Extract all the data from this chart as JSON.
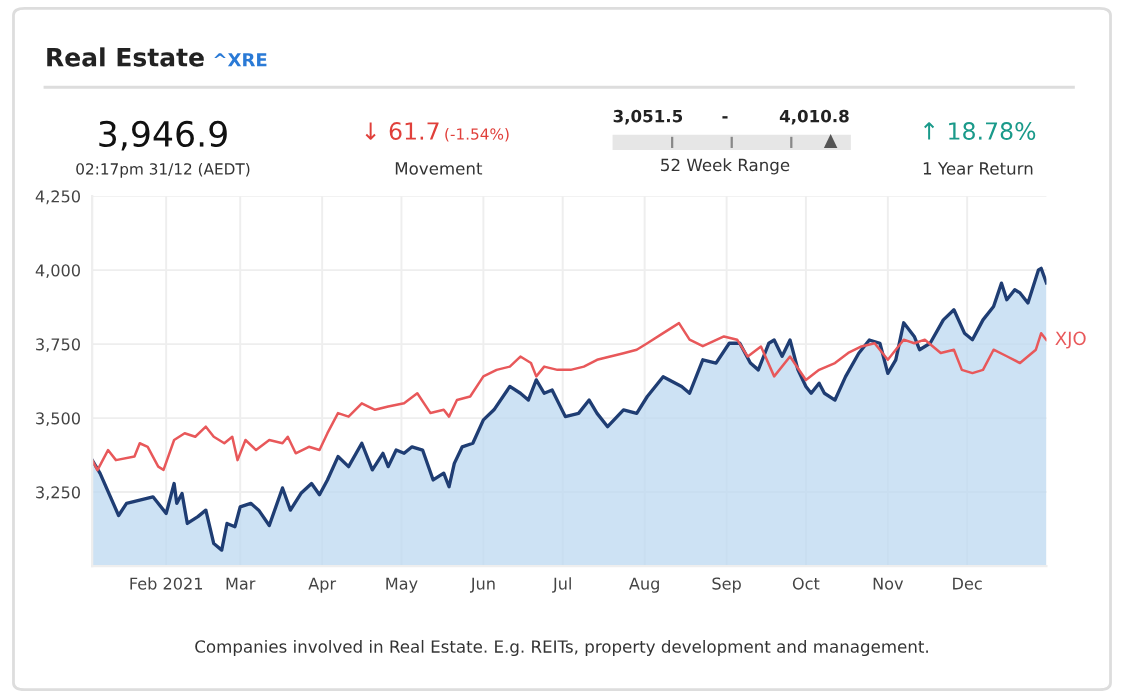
{
  "chart_data": {
    "type": "area",
    "title": "Real Estate",
    "annotations": [
      "^XRE",
      "3,946.9",
      "02:17pm 31/12 (AEDT)",
      "↓ 61.7",
      "(-1.54%)",
      "Movement",
      "3,051.5",
      "-",
      "4,010.8",
      "52 Week Range",
      "↑ 18.78%",
      "1 Year Return",
      "Companies involved in Real Estate. E.g. REITs, property development and management."
    ],
    "series": [
      {
        "color": "#1f3d73",
        "x": [
          "2021-01-04",
          "2021-01-07",
          "2021-01-14",
          "2021-01-17",
          "2021-01-22",
          "2021-01-27",
          "2021-02-01",
          "2021-02-04",
          "2021-02-05",
          "2021-02-07",
          "2021-02-09",
          "2021-02-13",
          "2021-02-16",
          "2021-02-19",
          "2021-02-22",
          "2021-02-24",
          "2021-02-27",
          "2021-03-01",
          "2021-03-05",
          "2021-03-08",
          "2021-03-12",
          "2021-03-17",
          "2021-03-20",
          "2021-03-24",
          "2021-03-28",
          "2021-03-31",
          "2021-04-03",
          "2021-04-07",
          "2021-04-11",
          "2021-04-16",
          "2021-04-20",
          "2021-04-24",
          "2021-04-26",
          "2021-04-29",
          "2021-05-02",
          "2021-05-05",
          "2021-05-09",
          "2021-05-13",
          "2021-05-17",
          "2021-05-19",
          "2021-05-21",
          "2021-05-24",
          "2021-05-28",
          "2021-06-01",
          "2021-06-05",
          "2021-06-11",
          "2021-06-15",
          "2021-06-18",
          "2021-06-21",
          "2021-06-24",
          "2021-06-27",
          "2021-07-02",
          "2021-07-07",
          "2021-07-11",
          "2021-07-14",
          "2021-07-18",
          "2021-07-24",
          "2021-07-29",
          "2021-08-02",
          "2021-08-08",
          "2021-08-15",
          "2021-08-18",
          "2021-08-23",
          "2021-08-28",
          "2021-09-02",
          "2021-09-06",
          "2021-09-10",
          "2021-09-13",
          "2021-09-17",
          "2021-09-19",
          "2021-09-22",
          "2021-09-25",
          "2021-09-28",
          "2021-10-01",
          "2021-10-03",
          "2021-10-06",
          "2021-10-08",
          "2021-10-12",
          "2021-10-16",
          "2021-10-21",
          "2021-10-25",
          "2021-10-29",
          "2021-11-01",
          "2021-11-04",
          "2021-11-07",
          "2021-11-11",
          "2021-11-13",
          "2021-11-17",
          "2021-11-22",
          "2021-11-26",
          "2021-11-30",
          "2021-12-03",
          "2021-12-07",
          "2021-12-11",
          "2021-12-14",
          "2021-12-16",
          "2021-12-19",
          "2021-12-21",
          "2021-12-24",
          "2021-12-28",
          "2021-12-29",
          "2021-12-31"
        ],
        "values": [
          3358,
          3313,
          3171,
          3212,
          3223,
          3234,
          3178,
          3279,
          3212,
          3245,
          3144,
          3167,
          3189,
          3076,
          3054,
          3144,
          3133,
          3200,
          3212,
          3189,
          3137,
          3264,
          3189,
          3246,
          3279,
          3241,
          3291,
          3370,
          3336,
          3415,
          3325,
          3381,
          3336,
          3392,
          3381,
          3403,
          3392,
          3291,
          3314,
          3268,
          3347,
          3403,
          3415,
          3494,
          3528,
          3607,
          3584,
          3561,
          3629,
          3584,
          3595,
          3505,
          3516,
          3561,
          3516,
          3471,
          3528,
          3516,
          3573,
          3640,
          3607,
          3584,
          3697,
          3686,
          3753,
          3753,
          3686,
          3663,
          3753,
          3764,
          3709,
          3764,
          3663,
          3607,
          3584,
          3618,
          3584,
          3561,
          3640,
          3719,
          3764,
          3753,
          3651,
          3697,
          3822,
          3776,
          3731,
          3753,
          3832,
          3866,
          3787,
          3765,
          3832,
          3877,
          3956,
          3900,
          3934,
          3923,
          3889,
          4001,
          4006,
          3957
        ]
      },
      {
        "type": "line",
        "name": "XJO",
        "color": "#e8585a",
        "x": [
          "2021-01-04",
          "2021-01-06",
          "2021-01-10",
          "2021-01-13",
          "2021-01-20",
          "2021-01-22",
          "2021-01-25",
          "2021-01-29",
          "2021-01-31",
          "2021-02-04",
          "2021-02-08",
          "2021-02-12",
          "2021-02-16",
          "2021-02-19",
          "2021-02-23",
          "2021-02-26",
          "2021-02-28",
          "2021-03-03",
          "2021-03-07",
          "2021-03-12",
          "2021-03-17",
          "2021-03-19",
          "2021-03-22",
          "2021-03-27",
          "2021-03-31",
          "2021-04-03",
          "2021-04-07",
          "2021-04-11",
          "2021-04-16",
          "2021-04-21",
          "2021-04-26",
          "2021-05-02",
          "2021-05-07",
          "2021-05-12",
          "2021-05-17",
          "2021-05-19",
          "2021-05-22",
          "2021-05-27",
          "2021-06-01",
          "2021-06-06",
          "2021-06-11",
          "2021-06-15",
          "2021-06-19",
          "2021-06-21",
          "2021-06-24",
          "2021-06-29",
          "2021-07-04",
          "2021-07-09",
          "2021-07-14",
          "2021-07-24",
          "2021-07-29",
          "2021-08-02",
          "2021-08-08",
          "2021-08-14",
          "2021-08-18",
          "2021-08-23",
          "2021-08-31",
          "2021-09-05",
          "2021-09-09",
          "2021-09-14",
          "2021-09-19",
          "2021-09-25",
          "2021-10-01",
          "2021-10-06",
          "2021-10-12",
          "2021-10-17",
          "2021-10-22",
          "2021-10-27",
          "2021-11-01",
          "2021-11-07",
          "2021-11-11",
          "2021-11-15",
          "2021-11-21",
          "2021-11-26",
          "2021-11-29",
          "2021-12-03",
          "2021-12-07",
          "2021-12-11",
          "2021-12-16",
          "2021-12-21",
          "2021-12-27",
          "2021-12-29",
          "2021-12-31"
        ],
        "values": [
          3358,
          3324,
          3392,
          3358,
          3370,
          3415,
          3403,
          3336,
          3325,
          3426,
          3449,
          3437,
          3471,
          3437,
          3415,
          3437,
          3358,
          3426,
          3392,
          3426,
          3415,
          3437,
          3381,
          3403,
          3392,
          3449,
          3517,
          3505,
          3550,
          3528,
          3539,
          3550,
          3584,
          3517,
          3528,
          3505,
          3561,
          3573,
          3641,
          3663,
          3674,
          3708,
          3686,
          3641,
          3674,
          3663,
          3663,
          3674,
          3697,
          3719,
          3731,
          3753,
          3787,
          3821,
          3765,
          3743,
          3776,
          3765,
          3708,
          3742,
          3641,
          3708,
          3629,
          3663,
          3686,
          3720,
          3742,
          3753,
          3697,
          3765,
          3753,
          3765,
          3720,
          3731,
          3663,
          3652,
          3663,
          3731,
          3709,
          3686,
          3731,
          3787,
          3764
        ]
      }
    ],
    "xlim": [
      "2021-01-04",
      "2021-12-31"
    ],
    "xticks": [
      {
        "value": "2021-02-01",
        "label": "Feb 2021"
      },
      {
        "value": "2021-03-01",
        "label": "Mar"
      },
      {
        "value": "2021-04-01",
        "label": "Apr"
      },
      {
        "value": "2021-05-01",
        "label": "May"
      },
      {
        "value": "2021-06-01",
        "label": "Jun"
      },
      {
        "value": "2021-07-01",
        "label": "Jul"
      },
      {
        "value": "2021-08-01",
        "label": "Aug"
      },
      {
        "value": "2021-09-01",
        "label": "Sep"
      },
      {
        "value": "2021-10-01",
        "label": "Oct"
      },
      {
        "value": "2021-11-01",
        "label": "Nov"
      },
      {
        "value": "2021-12-01",
        "label": "Dec"
      }
    ],
    "ylim": [
      3000,
      4250
    ],
    "yticks": [
      {
        "value": 3250,
        "label": "3,250"
      },
      {
        "value": 3500,
        "label": "3,500"
      },
      {
        "value": 3750,
        "label": "3,750"
      },
      {
        "value": 4000,
        "label": "4,000"
      },
      {
        "value": 4250,
        "label": "4,250"
      }
    ],
    "grid": true,
    "legend": false
  }
}
